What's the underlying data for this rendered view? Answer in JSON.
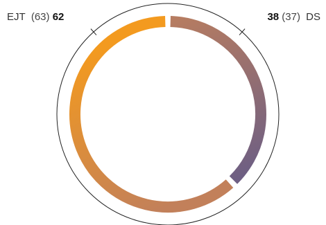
{
  "chart_data": {
    "type": "pie",
    "style": "donut",
    "series": [
      {
        "name": "EJT",
        "value": 62,
        "previous": 63,
        "previous_label": "(63)",
        "value_label": "62",
        "color_start": "#f39a1f",
        "color_end": "#c2805a"
      },
      {
        "name": "DS",
        "value": 38,
        "previous": 37,
        "previous_label": "(37)",
        "value_label": "38",
        "color_start": "#b67c61",
        "color_end": "#6e5f83"
      }
    ]
  },
  "colors": {
    "outline": "#222222",
    "tick": "#222222"
  }
}
